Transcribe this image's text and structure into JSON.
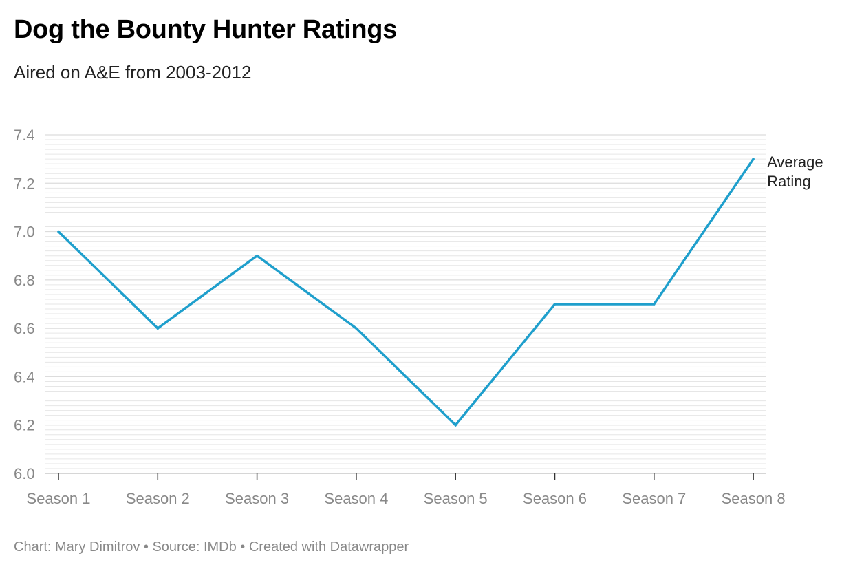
{
  "header": {
    "title": "Dog the Bounty Hunter Ratings",
    "subtitle": "Aired on A&E from 2003-2012"
  },
  "footer": {
    "credit": "Chart: Mary Dimitrov • Source: IMDb • Created with Datawrapper"
  },
  "colors": {
    "line": "#1f9fcc",
    "grid": "#e6e6e6",
    "tick_text": "#888888"
  },
  "chart_data": {
    "type": "line",
    "title": "Dog the Bounty Hunter Ratings",
    "subtitle": "Aired on A&E from 2003-2012",
    "categories": [
      "Season 1",
      "Season 2",
      "Season 3",
      "Season 4",
      "Season 5",
      "Season 6",
      "Season 7",
      "Season 8"
    ],
    "series": [
      {
        "name": "Average Rating",
        "label_lines": [
          "Average",
          "Rating"
        ],
        "values": [
          7.0,
          6.6,
          6.9,
          6.6,
          6.2,
          6.7,
          6.7,
          7.3
        ]
      }
    ],
    "ylim": [
      6.0,
      7.4
    ],
    "yticks": [
      "6.0",
      "6.2",
      "6.4",
      "6.6",
      "6.8",
      "7.0",
      "7.2",
      "7.4"
    ],
    "grid": true,
    "legend": "direct label at line end"
  }
}
